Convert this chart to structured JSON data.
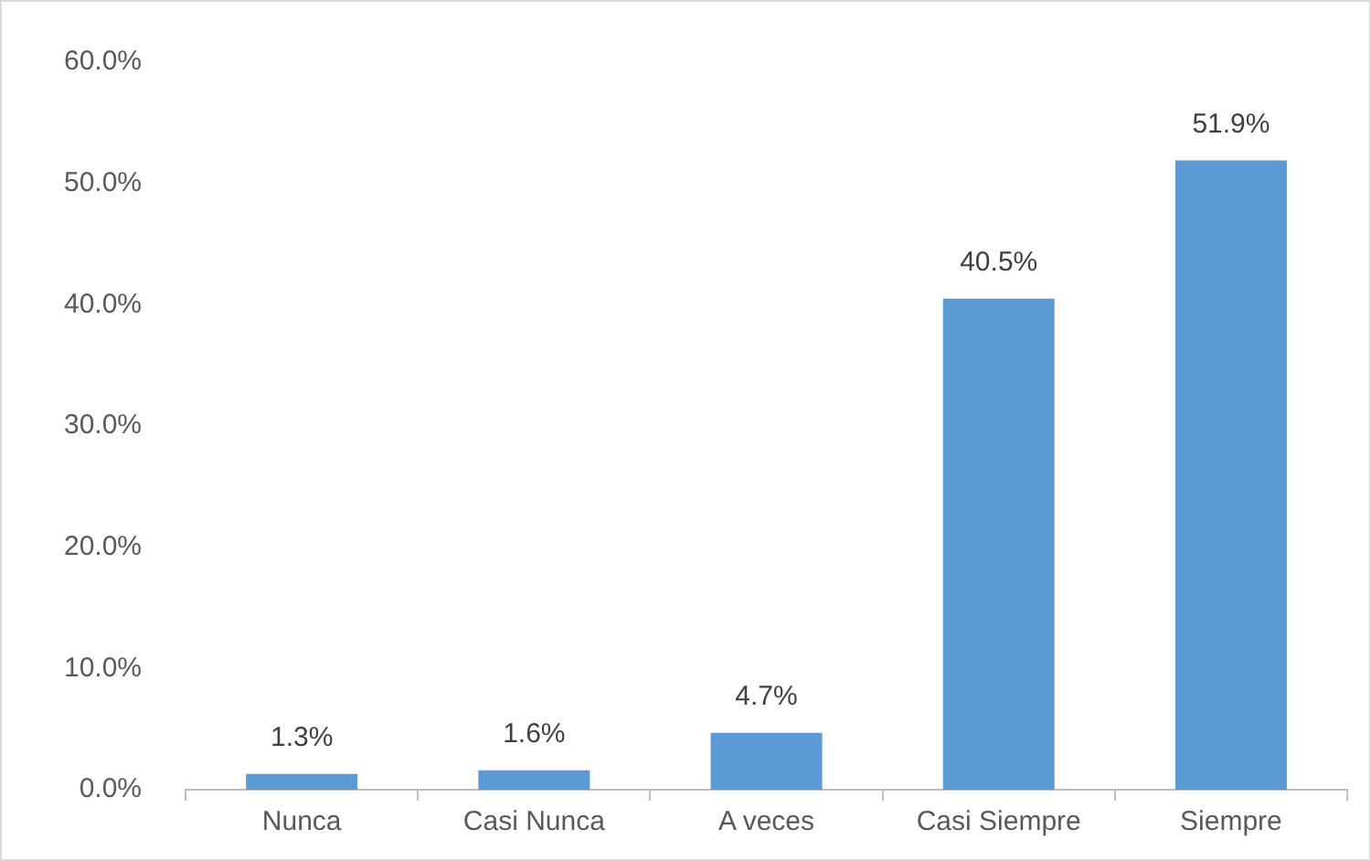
{
  "chart_data": {
    "type": "bar",
    "categories": [
      "Nunca",
      "Casi Nunca",
      "A veces",
      "Casi Siempre",
      "Siempre"
    ],
    "values": [
      1.3,
      1.6,
      4.7,
      40.5,
      51.9
    ],
    "value_labels": [
      "1.3%",
      "1.6%",
      "4.7%",
      "40.5%",
      "51.9%"
    ],
    "color": "#5b9bd5",
    "ylim": [
      0,
      60
    ],
    "yticks": [
      {
        "value": 0,
        "label": "0.0%"
      },
      {
        "value": 10,
        "label": "10.0%"
      },
      {
        "value": 20,
        "label": "20.0%"
      },
      {
        "value": 30,
        "label": "30.0%"
      },
      {
        "value": 40,
        "label": "40.0%"
      },
      {
        "value": 50,
        "label": "50.0%"
      },
      {
        "value": 60,
        "label": "60.0%"
      }
    ],
    "grid": false,
    "legend": false
  }
}
